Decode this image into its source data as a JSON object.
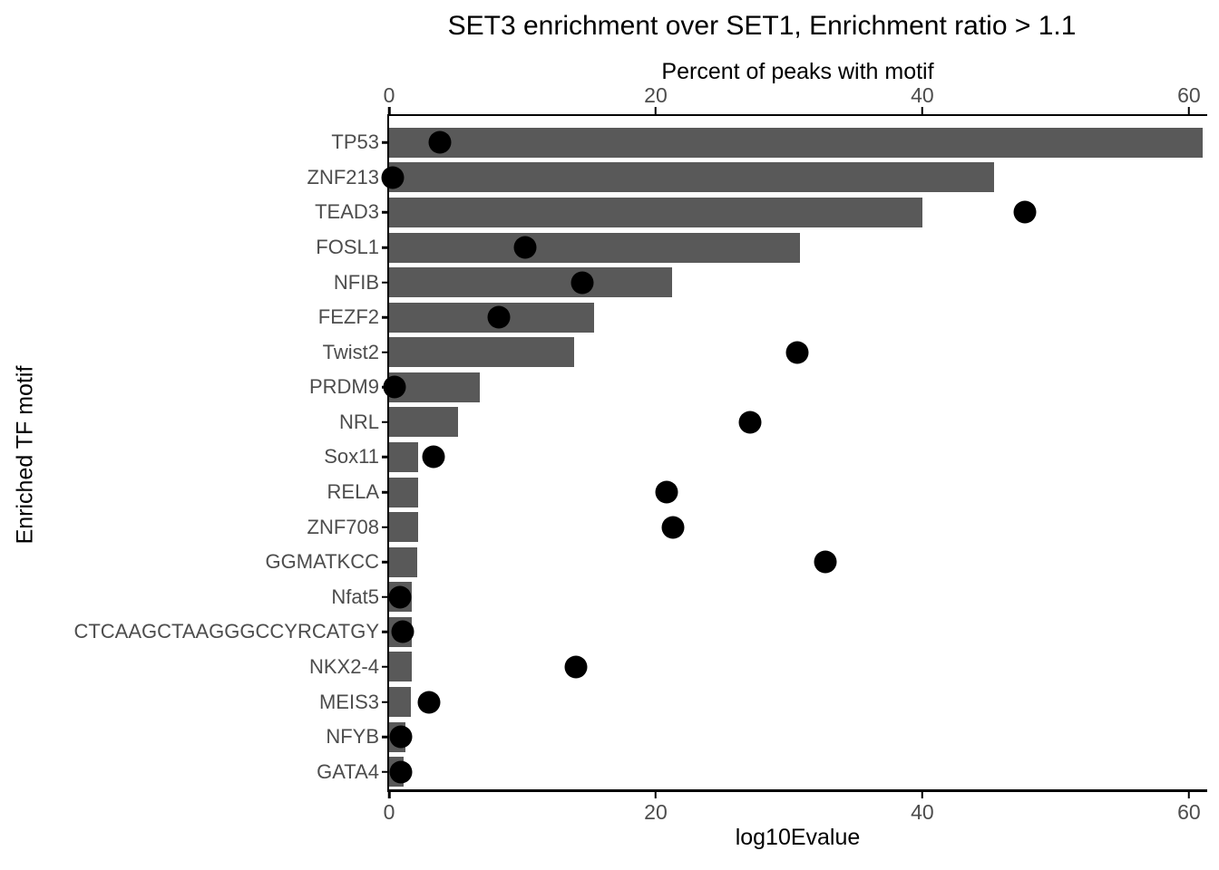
{
  "title": "SET3 enrichment over SET1, Enrichment ratio > 1.1",
  "top_axis": {
    "title": "Percent of peaks with motif",
    "tick_labels": [
      "0",
      "20",
      "40",
      "60"
    ],
    "tick_values": [
      0,
      20,
      40,
      60
    ]
  },
  "bottom_axis": {
    "title": "log10Evalue",
    "tick_labels": [
      "0",
      "20",
      "40",
      "60"
    ],
    "tick_values": [
      0,
      20,
      40,
      60
    ]
  },
  "y_axis": {
    "title": "Enriched TF motif"
  },
  "colors": {
    "bar": "#595959",
    "dot": "#000000",
    "axis_line": "#000000",
    "tick_label": "#4D4D4D",
    "title": "#000000",
    "background": "#FFFFFF"
  },
  "chart_data": {
    "type": "bar",
    "orientation": "horizontal",
    "title": "SET3 enrichment over SET1, Enrichment ratio > 1.1",
    "xlabel_top": "Percent of peaks with motif",
    "xlabel_bottom": "log10Evalue",
    "ylabel": "Enriched TF motif",
    "xlim": [
      0,
      61.3
    ],
    "x_ticks": [
      0,
      20,
      40,
      60
    ],
    "grid": false,
    "legend": "none",
    "categories": [
      "TP53",
      "ZNF213",
      "TEAD3",
      "FOSL1",
      "NFIB",
      "FEZF2",
      "Twist2",
      "PRDM9",
      "NRL",
      "Sox11",
      "RELA",
      "ZNF708",
      "GGMATKCC",
      "Nfat5",
      "CTCAAGCTAAGGGCCYRCATGY",
      "NKX2-4",
      "MEIS3",
      "NFYB",
      "GATA4"
    ],
    "series": [
      {
        "name": "Percent of peaks with motif",
        "type": "bar",
        "values": [
          61.0,
          45.4,
          40.0,
          30.8,
          21.2,
          15.4,
          13.9,
          6.8,
          5.2,
          2.2,
          2.2,
          2.2,
          2.1,
          1.7,
          1.7,
          1.7,
          1.6,
          1.2,
          1.1
        ]
      },
      {
        "name": "log10Evalue",
        "type": "scatter",
        "values": [
          3.8,
          0.3,
          47.7,
          10.2,
          14.5,
          8.2,
          30.6,
          0.4,
          27.1,
          3.3,
          20.8,
          21.3,
          32.7,
          0.8,
          1.0,
          14.0,
          3.0,
          0.9,
          0.9
        ]
      }
    ]
  }
}
